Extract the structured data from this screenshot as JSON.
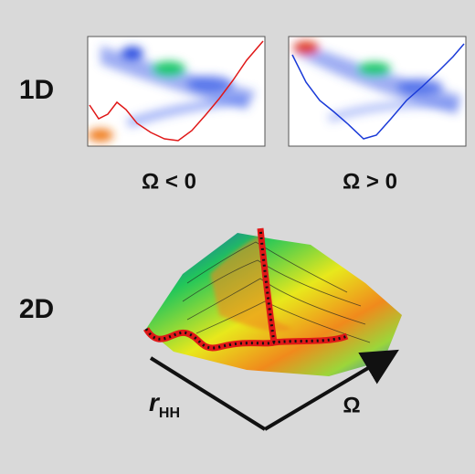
{
  "labels": {
    "one_d": "1D",
    "two_d": "2D",
    "omega_neg": "Ω < 0",
    "omega_pos": "Ω > 0",
    "axis_r": "r",
    "axis_r_sub": "HH",
    "axis_omega": "Ω"
  }
}
